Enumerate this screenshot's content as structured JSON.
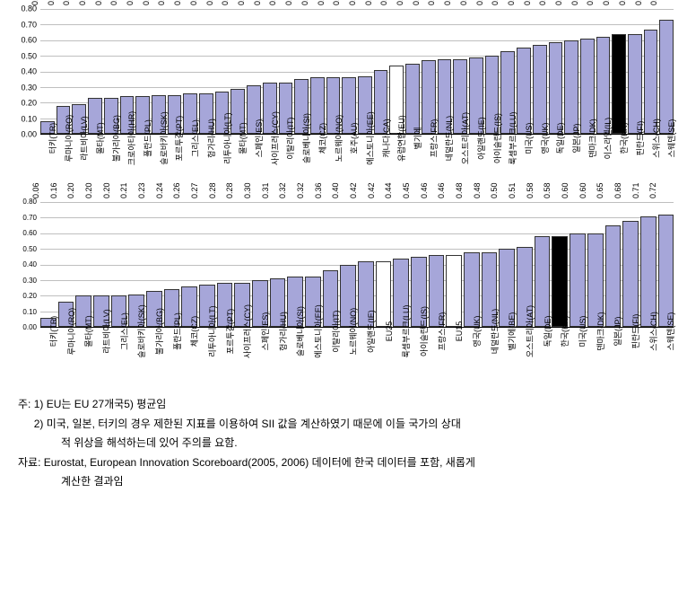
{
  "charts": [
    {
      "type": "bar",
      "ylim": [
        0,
        0.8
      ],
      "ytick_step": 0.1,
      "bar_color_default": "#a6a6d9",
      "bar_color_white": "#ffffff",
      "bar_color_black": "#000000",
      "border_color": "#333333",
      "grid_color": "#000000",
      "data": [
        {
          "label": "터키(TR)",
          "value": 0.08,
          "fill": "default"
        },
        {
          "label": "루마니아(RO)",
          "value": 0.18,
          "fill": "default"
        },
        {
          "label": "라트비아(LV)",
          "value": 0.19,
          "fill": "default"
        },
        {
          "label": "몰타(MT)",
          "value": 0.23,
          "fill": "default"
        },
        {
          "label": "불가리아(BG)",
          "value": 0.23,
          "fill": "default"
        },
        {
          "label": "크로아티아(HR)",
          "value": 0.24,
          "fill": "default"
        },
        {
          "label": "폴란드(PL)",
          "value": 0.24,
          "fill": "default"
        },
        {
          "label": "슬로바키아(SK)",
          "value": 0.25,
          "fill": "default"
        },
        {
          "label": "포르투갈(PT)",
          "value": 0.25,
          "fill": "default"
        },
        {
          "label": "그리스(EL)",
          "value": 0.26,
          "fill": "default"
        },
        {
          "label": "헝가리(HU)",
          "value": 0.26,
          "fill": "default"
        },
        {
          "label": "리투아니아(LT)",
          "value": 0.27,
          "fill": "default"
        },
        {
          "label": "몰타(MT)",
          "value": 0.29,
          "fill": "default"
        },
        {
          "label": "스페인(ES)",
          "value": 0.31,
          "fill": "default"
        },
        {
          "label": "사이프러스(CY)",
          "value": 0.33,
          "fill": "default"
        },
        {
          "label": "이탈리아(IT)",
          "value": 0.33,
          "fill": "default"
        },
        {
          "label": "슬로베니아(SI)",
          "value": 0.35,
          "fill": "default"
        },
        {
          "label": "체코(CZ)",
          "value": 0.36,
          "fill": "default"
        },
        {
          "label": "노르웨이(NO)",
          "value": 0.36,
          "fill": "default"
        },
        {
          "label": "호주(AU)",
          "value": 0.36,
          "fill": "default"
        },
        {
          "label": "에스토니아(EE)",
          "value": 0.37,
          "fill": "default"
        },
        {
          "label": "캐나다(CA)",
          "value": 0.41,
          "fill": "default"
        },
        {
          "label": "유럽연합(EU)",
          "value": 0.44,
          "fill": "white"
        },
        {
          "label": "벨기에",
          "value": 0.45,
          "fill": "default"
        },
        {
          "label": "프랑스(FR)",
          "value": 0.47,
          "fill": "default"
        },
        {
          "label": "네덜란드(NL)",
          "value": 0.48,
          "fill": "default"
        },
        {
          "label": "오스트리아(AT)",
          "value": 0.48,
          "fill": "default"
        },
        {
          "label": "아일랜드(IE)",
          "value": 0.49,
          "fill": "default"
        },
        {
          "label": "아이슬란드(IS)",
          "value": 0.5,
          "fill": "default"
        },
        {
          "label": "룩셈부르크(LU)",
          "value": 0.53,
          "fill": "default"
        },
        {
          "label": "미국(US)",
          "value": 0.55,
          "fill": "default"
        },
        {
          "label": "영국(UK)",
          "value": 0.57,
          "fill": "default"
        },
        {
          "label": "독일(DE)",
          "value": 0.59,
          "fill": "default"
        },
        {
          "label": "일본(JP)",
          "value": 0.6,
          "fill": "default"
        },
        {
          "label": "덴마크(DK)",
          "value": 0.61,
          "fill": "default"
        },
        {
          "label": "이스라엘(IL)",
          "value": 0.62,
          "fill": "default"
        },
        {
          "label": "한국(KR)",
          "value": 0.64,
          "fill": "black"
        },
        {
          "label": "핀란드(FI)",
          "value": 0.64,
          "fill": "default"
        },
        {
          "label": "스위스(CH)",
          "value": 0.67,
          "fill": "default"
        },
        {
          "label": "스웨덴(SE)",
          "value": 0.73,
          "fill": "default"
        }
      ]
    },
    {
      "type": "bar",
      "ylim": [
        0,
        0.8
      ],
      "ytick_step": 0.1,
      "bar_color_default": "#a6a6d9",
      "bar_color_white": "#ffffff",
      "bar_color_black": "#000000",
      "border_color": "#333333",
      "grid_color": "#000000",
      "data": [
        {
          "label": "터키(TR)",
          "value": 0.06,
          "fill": "default"
        },
        {
          "label": "루마니아(RO)",
          "value": 0.16,
          "fill": "default"
        },
        {
          "label": "몰타(MT)",
          "value": 0.2,
          "fill": "default"
        },
        {
          "label": "라트비아(LV)",
          "value": 0.2,
          "fill": "default"
        },
        {
          "label": "그리스(EL)",
          "value": 0.2,
          "fill": "default"
        },
        {
          "label": "슬로바키아(SK)",
          "value": 0.21,
          "fill": "default"
        },
        {
          "label": "불가리아(BG)",
          "value": 0.23,
          "fill": "default"
        },
        {
          "label": "폴란드(PL)",
          "value": 0.24,
          "fill": "default"
        },
        {
          "label": "체코(CZ)",
          "value": 0.26,
          "fill": "default"
        },
        {
          "label": "리투아니아(LT)",
          "value": 0.27,
          "fill": "default"
        },
        {
          "label": "포르투갈(PT)",
          "value": 0.28,
          "fill": "default"
        },
        {
          "label": "사이프러스(CY)",
          "value": 0.28,
          "fill": "default"
        },
        {
          "label": "스페인(ES)",
          "value": 0.3,
          "fill": "default"
        },
        {
          "label": "헝가리(HU)",
          "value": 0.31,
          "fill": "default"
        },
        {
          "label": "슬로베니아(SI)",
          "value": 0.32,
          "fill": "default"
        },
        {
          "label": "에스토니아(EE)",
          "value": 0.32,
          "fill": "default"
        },
        {
          "label": "이탈리아(IT)",
          "value": 0.36,
          "fill": "default"
        },
        {
          "label": "노르웨이(NO)",
          "value": 0.4,
          "fill": "default"
        },
        {
          "label": "아일랜드(IE)",
          "value": 0.42,
          "fill": "default"
        },
        {
          "label": "EU25",
          "value": 0.42,
          "fill": "white"
        },
        {
          "label": "룩셈부르크(LU)",
          "value": 0.44,
          "fill": "default"
        },
        {
          "label": "아이슬란드(IS)",
          "value": 0.45,
          "fill": "default"
        },
        {
          "label": "프랑스(FR)",
          "value": 0.46,
          "fill": "default"
        },
        {
          "label": "EU15",
          "value": 0.46,
          "fill": "white"
        },
        {
          "label": "영국(UK)",
          "value": 0.48,
          "fill": "default"
        },
        {
          "label": "네덜란드(NL)",
          "value": 0.48,
          "fill": "default"
        },
        {
          "label": "벨기에(BE)",
          "value": 0.5,
          "fill": "default"
        },
        {
          "label": "오스트리아(AT)",
          "value": 0.51,
          "fill": "default"
        },
        {
          "label": "독일(DE)",
          "value": 0.58,
          "fill": "default"
        },
        {
          "label": "한국(KR)",
          "value": 0.58,
          "fill": "black"
        },
        {
          "label": "미국(US)",
          "value": 0.6,
          "fill": "default"
        },
        {
          "label": "덴마크(DK)",
          "value": 0.6,
          "fill": "default"
        },
        {
          "label": "일본(JP)",
          "value": 0.65,
          "fill": "default"
        },
        {
          "label": "핀란드(FI)",
          "value": 0.68,
          "fill": "default"
        },
        {
          "label": "스위스(CH)",
          "value": 0.71,
          "fill": "default"
        },
        {
          "label": "스웨덴(SE)",
          "value": 0.72,
          "fill": "default"
        }
      ]
    }
  ],
  "notes": {
    "prefix1": "주:",
    "line1_num": "1)",
    "line1": "EU는 EU 27개국5) 평균임",
    "line2_num": "2)",
    "line2a": "미국, 일본, 터키의 경우 제한된 지표를 이용하여 SII 값을 계산하였기 때문에 이들 국가의 상대",
    "line2b": "적 위상을 해석하는데 있어 주의를 요함.",
    "prefix2": "자료:",
    "source1": "Eurostat, European Innovation Scoreboard(2005, 2006) 데이터에 한국 데이터를 포함, 새롭게",
    "source2": "계산한 결과임"
  }
}
